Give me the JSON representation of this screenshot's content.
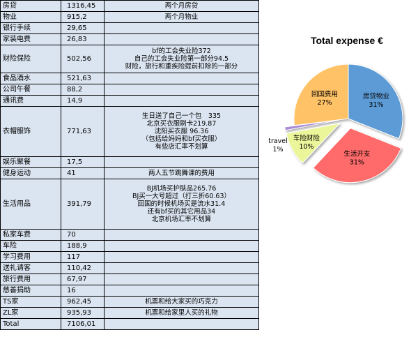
{
  "table": {
    "rows": [
      {
        "category": "房贷",
        "amount": "1316,45",
        "notes": [
          "两个月房贷"
        ]
      },
      {
        "category": "物业",
        "amount": "915,2",
        "notes": [
          "两个月物业"
        ]
      },
      {
        "category": "银行手续",
        "amount": "29,65",
        "notes": []
      },
      {
        "category": "家装电费",
        "amount": "26,83",
        "notes": []
      },
      {
        "category": "财险保险",
        "amount": "502,56",
        "notes": [
          "bf的工会失业险372",
          "自己的工会失业险第一部分94.5",
          "财险，旅行和重疾险提前扣除的一部分"
        ]
      },
      {
        "category": "食品酒水",
        "amount": "521,63",
        "notes": []
      },
      {
        "category": "公司午餐",
        "amount": "88,2",
        "notes": []
      },
      {
        "category": "通讯费",
        "amount": "14,9",
        "notes": []
      },
      {
        "category": "衣帽服饰",
        "amount": "771,63",
        "notes": [
          "生日送了自己一个包　335",
          "北京买衣服刷卡219.87",
          "沈阳买衣服 96.36",
          "（包括给妈妈和bf买衣服）",
          "有些店汇率不划算"
        ]
      },
      {
        "category": "娱乐聚餐",
        "amount": "17,5",
        "notes": []
      },
      {
        "category": "健身运动",
        "amount": "41",
        "notes": [
          "两人五节跳舞课的费用"
        ]
      },
      {
        "category": "生活用品",
        "amount": "391,79",
        "notes": [
          "BJ机场买护肤品265.76",
          "BJ买一大号超过（打三折60.63）",
          "回国的时候机场买是流水31.4",
          "还有bf买的其它用品34",
          "北京机场汇率不划算"
        ]
      },
      {
        "category": "私家车费",
        "amount": "70",
        "notes": []
      },
      {
        "category": "车险",
        "amount": "188,9",
        "notes": []
      },
      {
        "category": "学习费用",
        "amount": "117",
        "notes": []
      },
      {
        "category": "送礼请客",
        "amount": "110,42",
        "notes": []
      },
      {
        "category": "旅行费用",
        "amount": "67,97",
        "notes": []
      },
      {
        "category": "慈善捐助",
        "amount": "16",
        "notes": []
      },
      {
        "category": "TS家",
        "amount": "962,45",
        "notes": [
          "机票和给大家买的巧克力"
        ]
      },
      {
        "category": "ZL家",
        "amount": "935,93",
        "notes": [
          "机票和给家里人买的礼物"
        ]
      },
      {
        "category": "Total",
        "amount": "7106,01",
        "notes": []
      }
    ]
  },
  "chart_data": {
    "type": "pie",
    "title": "Total expense €",
    "slices": [
      {
        "label": "房贷物业",
        "percent": 31,
        "percent_label": "31%",
        "color": "#5b9bd5",
        "exploded": false
      },
      {
        "label": "生活开支",
        "percent": 31,
        "percent_label": "31%",
        "color": "#ff6b6b",
        "exploded": true
      },
      {
        "label": "车险财险",
        "percent": 10,
        "percent_label": "10%",
        "color": "#ebf59a",
        "exploded": true
      },
      {
        "label": "travel",
        "percent": 1,
        "percent_label": "1%",
        "color": "#a98ad6",
        "exploded": true
      },
      {
        "label": "回国费用",
        "percent": 27,
        "percent_label": "27%",
        "color": "#ffc266",
        "exploded": false
      }
    ]
  }
}
